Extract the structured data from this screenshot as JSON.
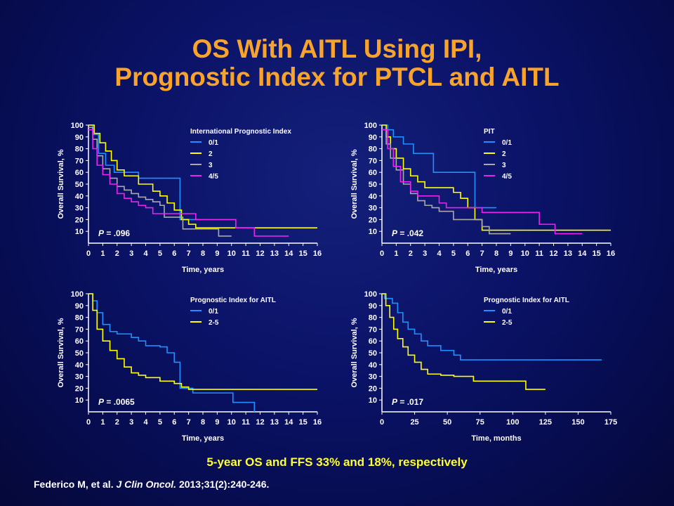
{
  "title": {
    "line1": "OS With AITL Using IPI,",
    "line2": "Prognostic Index for PTCL and AITL"
  },
  "summary": "5-year OS and FFS 33% and 18%, respectively",
  "citation": {
    "authors": "Federico M, et al.",
    "journal": "J Clin Oncol.",
    "details": "2013;31(2):240-246."
  },
  "chart_data": [
    {
      "type": "line",
      "step": true,
      "title": "",
      "xlabel": "Time, years",
      "ylabel": "Overall Survival, %",
      "xlim": [
        0,
        16
      ],
      "ylim": [
        0,
        100
      ],
      "x_ticks": [
        "0",
        "1",
        "2",
        "3",
        "4",
        "5",
        "6",
        "7",
        "8",
        "9",
        "10",
        "11",
        "12",
        "13",
        "14",
        "15",
        "16"
      ],
      "y_ticks": [
        "10",
        "20",
        "30",
        "40",
        "50",
        "60",
        "70",
        "80",
        "90",
        "100"
      ],
      "legend_title": "International Prognostic Index",
      "legend_position": "top-right",
      "p_prefix": "P",
      "p_value": " = .096",
      "series": [
        {
          "name": "0/1",
          "color": "#1e90ff",
          "points": [
            [
              0,
              100
            ],
            [
              0.3,
              92
            ],
            [
              0.7,
              76
            ],
            [
              1.2,
              66
            ],
            [
              1.8,
              60
            ],
            [
              3.5,
              60
            ],
            [
              3.5,
              55
            ],
            [
              6.2,
              55
            ],
            [
              6.4,
              20
            ],
            [
              7.8,
              20
            ]
          ]
        },
        {
          "name": "2",
          "color": "#ffff00",
          "points": [
            [
              0,
              100
            ],
            [
              0.4,
              93
            ],
            [
              0.8,
              85
            ],
            [
              1.2,
              78
            ],
            [
              1.6,
              70
            ],
            [
              2,
              62
            ],
            [
              2.5,
              57
            ],
            [
              3.5,
              50
            ],
            [
              4.5,
              44
            ],
            [
              5,
              40
            ],
            [
              5.5,
              34
            ],
            [
              6,
              28
            ],
            [
              6.5,
              20
            ],
            [
              7,
              16
            ],
            [
              7.5,
              13
            ],
            [
              16,
              13
            ]
          ]
        },
        {
          "name": "3",
          "color": "#a9a9a9",
          "points": [
            [
              0,
              98
            ],
            [
              0.3,
              88
            ],
            [
              0.6,
              74
            ],
            [
              1,
              63
            ],
            [
              1.5,
              55
            ],
            [
              2,
              48
            ],
            [
              2.5,
              45
            ],
            [
              3,
              42
            ],
            [
              3.5,
              39
            ],
            [
              4,
              37
            ],
            [
              4.5,
              35
            ],
            [
              5,
              32
            ],
            [
              5.3,
              22
            ],
            [
              6.5,
              22
            ],
            [
              6.6,
              12
            ],
            [
              9,
              12
            ],
            [
              9.1,
              6
            ],
            [
              10,
              6
            ]
          ]
        },
        {
          "name": "4/5",
          "color": "#ee22ee",
          "points": [
            [
              0,
              96
            ],
            [
              0.3,
              80
            ],
            [
              0.6,
              66
            ],
            [
              1,
              58
            ],
            [
              1.5,
              50
            ],
            [
              2,
              42
            ],
            [
              2.5,
              38
            ],
            [
              3,
              35
            ],
            [
              3.5,
              32
            ],
            [
              4,
              30
            ],
            [
              4.5,
              25
            ],
            [
              7,
              25
            ],
            [
              7.5,
              20
            ],
            [
              10.2,
              20
            ],
            [
              10.3,
              13
            ],
            [
              11.5,
              13
            ],
            [
              11.6,
              6
            ],
            [
              14,
              6
            ]
          ]
        }
      ]
    },
    {
      "type": "line",
      "step": true,
      "title": "",
      "xlabel": "Time, years",
      "ylabel": "Overall Survival, %",
      "xlim": [
        0,
        16
      ],
      "ylim": [
        0,
        100
      ],
      "x_ticks": [
        "0",
        "1",
        "2",
        "3",
        "4",
        "5",
        "6",
        "7",
        "8",
        "9",
        "10",
        "11",
        "12",
        "13",
        "14",
        "15",
        "16"
      ],
      "y_ticks": [
        "10",
        "20",
        "30",
        "40",
        "50",
        "60",
        "70",
        "80",
        "90",
        "100"
      ],
      "legend_title": "PIT",
      "legend_position": "top-right",
      "p_prefix": "P",
      "p_value": " = .042",
      "series": [
        {
          "name": "0/1",
          "color": "#1e90ff",
          "points": [
            [
              0,
              100
            ],
            [
              0.4,
              96
            ],
            [
              0.8,
              90
            ],
            [
              1.5,
              84
            ],
            [
              2.2,
              76
            ],
            [
              3.5,
              76
            ],
            [
              3.6,
              60
            ],
            [
              6.3,
              60
            ],
            [
              6.5,
              30
            ],
            [
              8,
              30
            ]
          ]
        },
        {
          "name": "2",
          "color": "#ffff00",
          "points": [
            [
              0,
              100
            ],
            [
              0.3,
              90
            ],
            [
              0.6,
              80
            ],
            [
              1,
              72
            ],
            [
              1.5,
              63
            ],
            [
              2,
              57
            ],
            [
              2.5,
              52
            ],
            [
              3,
              47
            ],
            [
              4.5,
              47
            ],
            [
              5,
              43
            ],
            [
              5.5,
              38
            ],
            [
              6,
              30
            ],
            [
              6.5,
              20
            ],
            [
              7,
              11
            ],
            [
              16,
              11
            ]
          ]
        },
        {
          "name": "3",
          "color": "#a9a9a9",
          "points": [
            [
              0,
              96
            ],
            [
              0.3,
              84
            ],
            [
              0.6,
              72
            ],
            [
              1,
              62
            ],
            [
              1.5,
              50
            ],
            [
              2,
              42
            ],
            [
              2.5,
              36
            ],
            [
              3,
              32
            ],
            [
              3.5,
              30
            ],
            [
              4,
              27
            ],
            [
              5,
              20
            ],
            [
              6,
              20
            ],
            [
              7,
              14
            ],
            [
              7.5,
              8
            ],
            [
              9,
              8
            ]
          ]
        },
        {
          "name": "4/5",
          "color": "#ee22ee",
          "points": [
            [
              0,
              96
            ],
            [
              0.4,
              80
            ],
            [
              0.8,
              65
            ],
            [
              1.3,
              52
            ],
            [
              2,
              44
            ],
            [
              2.5,
              40
            ],
            [
              4,
              34
            ],
            [
              4.5,
              30
            ],
            [
              6,
              30
            ],
            [
              7,
              26
            ],
            [
              10,
              26
            ],
            [
              11,
              16
            ],
            [
              12,
              16
            ],
            [
              12.1,
              8
            ],
            [
              14,
              8
            ]
          ]
        }
      ]
    },
    {
      "type": "line",
      "step": true,
      "title": "",
      "xlabel": "Time, years",
      "ylabel": "Overall Survival, %",
      "xlim": [
        0,
        16
      ],
      "ylim": [
        0,
        100
      ],
      "x_ticks": [
        "0",
        "1",
        "2",
        "3",
        "4",
        "5",
        "6",
        "7",
        "8",
        "9",
        "10",
        "11",
        "12",
        "13",
        "14",
        "15",
        "16"
      ],
      "y_ticks": [
        "10",
        "20",
        "30",
        "40",
        "50",
        "60",
        "70",
        "80",
        "90",
        "100"
      ],
      "legend_title": "Prognostic Index for AITL",
      "legend_position": "top-right",
      "p_prefix": "P",
      "p_value": " = .0065",
      "series": [
        {
          "name": "0/1",
          "color": "#1e90ff",
          "points": [
            [
              0,
              100
            ],
            [
              0.3,
              94
            ],
            [
              0.6,
              84
            ],
            [
              1,
              74
            ],
            [
              1.5,
              68
            ],
            [
              2,
              66
            ],
            [
              3,
              63
            ],
            [
              3.5,
              60
            ],
            [
              4,
              56
            ],
            [
              5,
              55
            ],
            [
              5.5,
              50
            ],
            [
              6,
              42
            ],
            [
              6.4,
              20
            ],
            [
              7.3,
              16
            ],
            [
              10,
              16
            ],
            [
              10.1,
              8
            ],
            [
              11.5,
              8
            ],
            [
              11.6,
              0
            ]
          ]
        },
        {
          "name": "2-5",
          "color": "#ffff00",
          "points": [
            [
              0,
              100
            ],
            [
              0.3,
              86
            ],
            [
              0.6,
              70
            ],
            [
              1,
              60
            ],
            [
              1.5,
              52
            ],
            [
              2,
              45
            ],
            [
              2.5,
              38
            ],
            [
              3,
              33
            ],
            [
              3.5,
              31
            ],
            [
              4,
              29
            ],
            [
              5,
              26
            ],
            [
              6,
              24
            ],
            [
              6.5,
              21
            ],
            [
              7,
              19
            ],
            [
              16,
              19
            ]
          ]
        }
      ]
    },
    {
      "type": "line",
      "step": true,
      "title": "",
      "xlabel": "Time, months",
      "ylabel": "Overall Survival, %",
      "xlim": [
        0,
        175
      ],
      "ylim": [
        0,
        100
      ],
      "x_ticks": [
        "0",
        "25",
        "50",
        "75",
        "100",
        "125",
        "150",
        "175"
      ],
      "y_ticks": [
        "10",
        "20",
        "30",
        "40",
        "50",
        "60",
        "70",
        "80",
        "90",
        "100"
      ],
      "legend_title": "Prognostic Index for AITL",
      "legend_position": "top-right",
      "p_prefix": "P",
      "p_value": " = .017",
      "series": [
        {
          "name": "0/1",
          "color": "#1e90ff",
          "points": [
            [
              0,
              100
            ],
            [
              2,
              96
            ],
            [
              8,
              92
            ],
            [
              12,
              84
            ],
            [
              16,
              76
            ],
            [
              20,
              70
            ],
            [
              25,
              66
            ],
            [
              30,
              60
            ],
            [
              35,
              56
            ],
            [
              45,
              52
            ],
            [
              55,
              48
            ],
            [
              60,
              44
            ],
            [
              168,
              44
            ]
          ]
        },
        {
          "name": "2-5",
          "color": "#ffff00",
          "points": [
            [
              0,
              100
            ],
            [
              3,
              90
            ],
            [
              6,
              80
            ],
            [
              9,
              70
            ],
            [
              12,
              62
            ],
            [
              16,
              55
            ],
            [
              20,
              48
            ],
            [
              25,
              42
            ],
            [
              30,
              36
            ],
            [
              35,
              32
            ],
            [
              45,
              31
            ],
            [
              55,
              30
            ],
            [
              70,
              26
            ],
            [
              108,
              26
            ],
            [
              110,
              19
            ],
            [
              125,
              19
            ]
          ]
        }
      ]
    }
  ]
}
